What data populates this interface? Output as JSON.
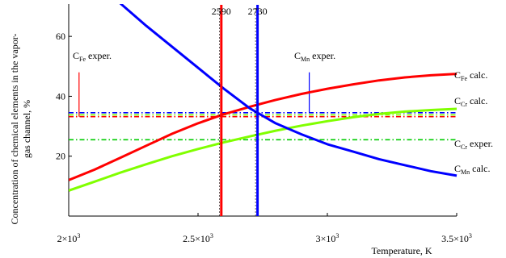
{
  "chart_data": {
    "type": "line",
    "xlabel": "Temperature, K",
    "ylabel_lines": [
      "Concentration of chemical elements in the vapor-",
      "gas channel, %"
    ],
    "xlim": [
      2000,
      3500
    ],
    "ylim": [
      0,
      70
    ],
    "grid": false,
    "x_ticks": [
      {
        "value": 2000,
        "mant": "2×10",
        "exp": "3"
      },
      {
        "value": 2500,
        "mant": "2.5×10",
        "exp": "3"
      },
      {
        "value": 3000,
        "mant": "3×10",
        "exp": "3"
      },
      {
        "value": 3500,
        "mant": "3.5×10",
        "exp": "3"
      }
    ],
    "y_ticks": [
      {
        "value": 20,
        "label": "20"
      },
      {
        "value": 40,
        "label": "40"
      },
      {
        "value": 60,
        "label": "60"
      }
    ],
    "series": [
      {
        "label_main": "C",
        "label_sub": "Fe",
        "label_rest": " calc.",
        "color": "#ff0000",
        "x": [
          2000,
          2100,
          2200,
          2300,
          2400,
          2500,
          2600,
          2700,
          2800,
          2900,
          3000,
          3100,
          3200,
          3300,
          3400,
          3500
        ],
        "y": [
          12,
          15.5,
          19.5,
          23.5,
          27.5,
          31,
          34,
          36.5,
          38.8,
          40.8,
          42.5,
          44,
          45.3,
          46.3,
          47,
          47.5
        ]
      },
      {
        "label_main": "C",
        "label_sub": "Cr",
        "label_rest": " calc.",
        "color": "#80ff00",
        "x": [
          2000,
          2100,
          2200,
          2300,
          2400,
          2500,
          2600,
          2700,
          2800,
          2900,
          3000,
          3100,
          3200,
          3300,
          3400,
          3500
        ],
        "y": [
          8.5,
          11.5,
          14.5,
          17.3,
          20,
          22.4,
          24.6,
          26.6,
          28.5,
          30.2,
          31.7,
          33,
          34.1,
          34.9,
          35.4,
          35.8
        ]
      },
      {
        "label_main": "C",
        "label_sub": "Mn",
        "label_rest": " calc.",
        "color": "#0000ff",
        "x": [
          2000,
          2100,
          2200,
          2300,
          2400,
          2500,
          2600,
          2700,
          2800,
          2900,
          3000,
          3100,
          3200,
          3300,
          3400,
          3500
        ],
        "y": [
          86,
          78.5,
          71,
          63.5,
          56.5,
          49.5,
          42.5,
          36,
          31,
          27.3,
          24,
          21.5,
          19,
          17,
          15,
          13.5
        ]
      }
    ],
    "horizontal_lines": [
      {
        "y": 34.5,
        "color": "#0000ff"
      },
      {
        "y": 33.8,
        "color": "#80ff00"
      },
      {
        "y": 33.2,
        "color": "#ff0000"
      },
      {
        "y": 25.5,
        "color": "#00cc00"
      }
    ],
    "vertical_lines": [
      {
        "x": 2590,
        "label": "2590",
        "color": "#ff0000"
      },
      {
        "x": 2730,
        "label": "2730",
        "color": "#0000ff"
      }
    ],
    "experiment_markers": [
      {
        "x": 2040,
        "y_from": 33.2,
        "y_to": 48,
        "color": "#ff0000"
      },
      {
        "x": 2930,
        "y_from": 34.5,
        "y_to": 48,
        "color": "#0000ff"
      }
    ],
    "annotations": [
      {
        "main": "C",
        "sub": "Fe",
        "rest": " exper."
      },
      {
        "main": "C",
        "sub": "Mn",
        "rest": " exper."
      },
      {
        "main": "C",
        "sub": "Cr",
        "rest": " exper."
      }
    ]
  }
}
